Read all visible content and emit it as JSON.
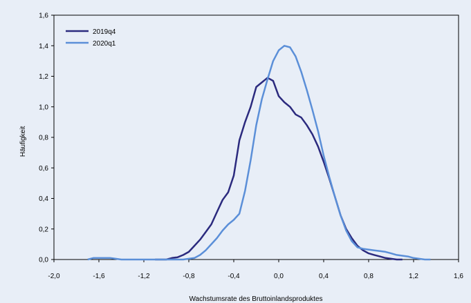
{
  "chart_data": {
    "type": "line",
    "xlabel": "Wachstumsrate des Bruttoinlandsproduktes",
    "ylabel": "Häufigkeit",
    "xlim": [
      -2.0,
      1.6
    ],
    "ylim": [
      0.0,
      1.6
    ],
    "x_ticks": [
      "-2,0",
      "-1,6",
      "-1,2",
      "-0,8",
      "-0,4",
      "0,0",
      "0,4",
      "0,8",
      "1,2",
      "1,6"
    ],
    "y_ticks": [
      "0,0",
      "0,2",
      "0,4",
      "0,6",
      "0,8",
      "1,0",
      "1,2",
      "1,4",
      "1,6"
    ],
    "legend_position": "top-left",
    "grid": false,
    "series": [
      {
        "name": "2019q4",
        "color": "#2b2a7e",
        "x": [
          -1.1,
          -1.0,
          -0.95,
          -0.9,
          -0.85,
          -0.8,
          -0.75,
          -0.7,
          -0.65,
          -0.6,
          -0.55,
          -0.5,
          -0.45,
          -0.4,
          -0.35,
          -0.3,
          -0.25,
          -0.2,
          -0.15,
          -0.1,
          -0.05,
          0.0,
          0.05,
          0.1,
          0.15,
          0.2,
          0.25,
          0.3,
          0.35,
          0.4,
          0.45,
          0.5,
          0.55,
          0.6,
          0.65,
          0.7,
          0.75,
          0.8,
          0.85,
          0.9,
          0.95,
          1.0,
          1.05,
          1.1
        ],
        "y": [
          0.0,
          0.0,
          0.01,
          0.015,
          0.03,
          0.05,
          0.09,
          0.13,
          0.18,
          0.23,
          0.31,
          0.39,
          0.44,
          0.55,
          0.78,
          0.9,
          1.0,
          1.13,
          1.16,
          1.19,
          1.17,
          1.07,
          1.03,
          1.0,
          0.95,
          0.93,
          0.88,
          0.82,
          0.74,
          0.64,
          0.53,
          0.41,
          0.29,
          0.2,
          0.14,
          0.09,
          0.06,
          0.04,
          0.03,
          0.02,
          0.01,
          0.005,
          0.0,
          0.0
        ]
      },
      {
        "name": "2020q1",
        "color": "#5b8fd8",
        "x": [
          -1.7,
          -1.65,
          -1.6,
          -1.55,
          -1.5,
          -1.45,
          -1.4,
          -1.35,
          -1.3,
          -1.25,
          -1.2,
          -1.15,
          -1.1,
          -1.05,
          -1.0,
          -0.95,
          -0.9,
          -0.85,
          -0.8,
          -0.75,
          -0.7,
          -0.65,
          -0.6,
          -0.55,
          -0.5,
          -0.45,
          -0.4,
          -0.35,
          -0.3,
          -0.25,
          -0.2,
          -0.15,
          -0.1,
          -0.05,
          0.0,
          0.05,
          0.1,
          0.15,
          0.2,
          0.25,
          0.3,
          0.35,
          0.4,
          0.45,
          0.5,
          0.55,
          0.6,
          0.65,
          0.7,
          0.75,
          0.8,
          0.85,
          0.9,
          0.95,
          1.0,
          1.05,
          1.1,
          1.15,
          1.2,
          1.25,
          1.3,
          1.35
        ],
        "y": [
          0.0,
          0.01,
          0.01,
          0.01,
          0.01,
          0.005,
          0.0,
          0.0,
          0.0,
          0.0,
          0.0,
          0.0,
          0.0,
          0.0,
          0.0,
          0.0,
          0.0,
          0.0,
          0.005,
          0.01,
          0.03,
          0.06,
          0.1,
          0.14,
          0.19,
          0.23,
          0.26,
          0.3,
          0.45,
          0.65,
          0.88,
          1.05,
          1.18,
          1.3,
          1.37,
          1.4,
          1.39,
          1.33,
          1.23,
          1.11,
          0.98,
          0.84,
          0.68,
          0.54,
          0.41,
          0.29,
          0.19,
          0.12,
          0.08,
          0.07,
          0.065,
          0.06,
          0.055,
          0.05,
          0.04,
          0.03,
          0.025,
          0.02,
          0.01,
          0.005,
          0.0,
          0.0
        ]
      }
    ]
  }
}
